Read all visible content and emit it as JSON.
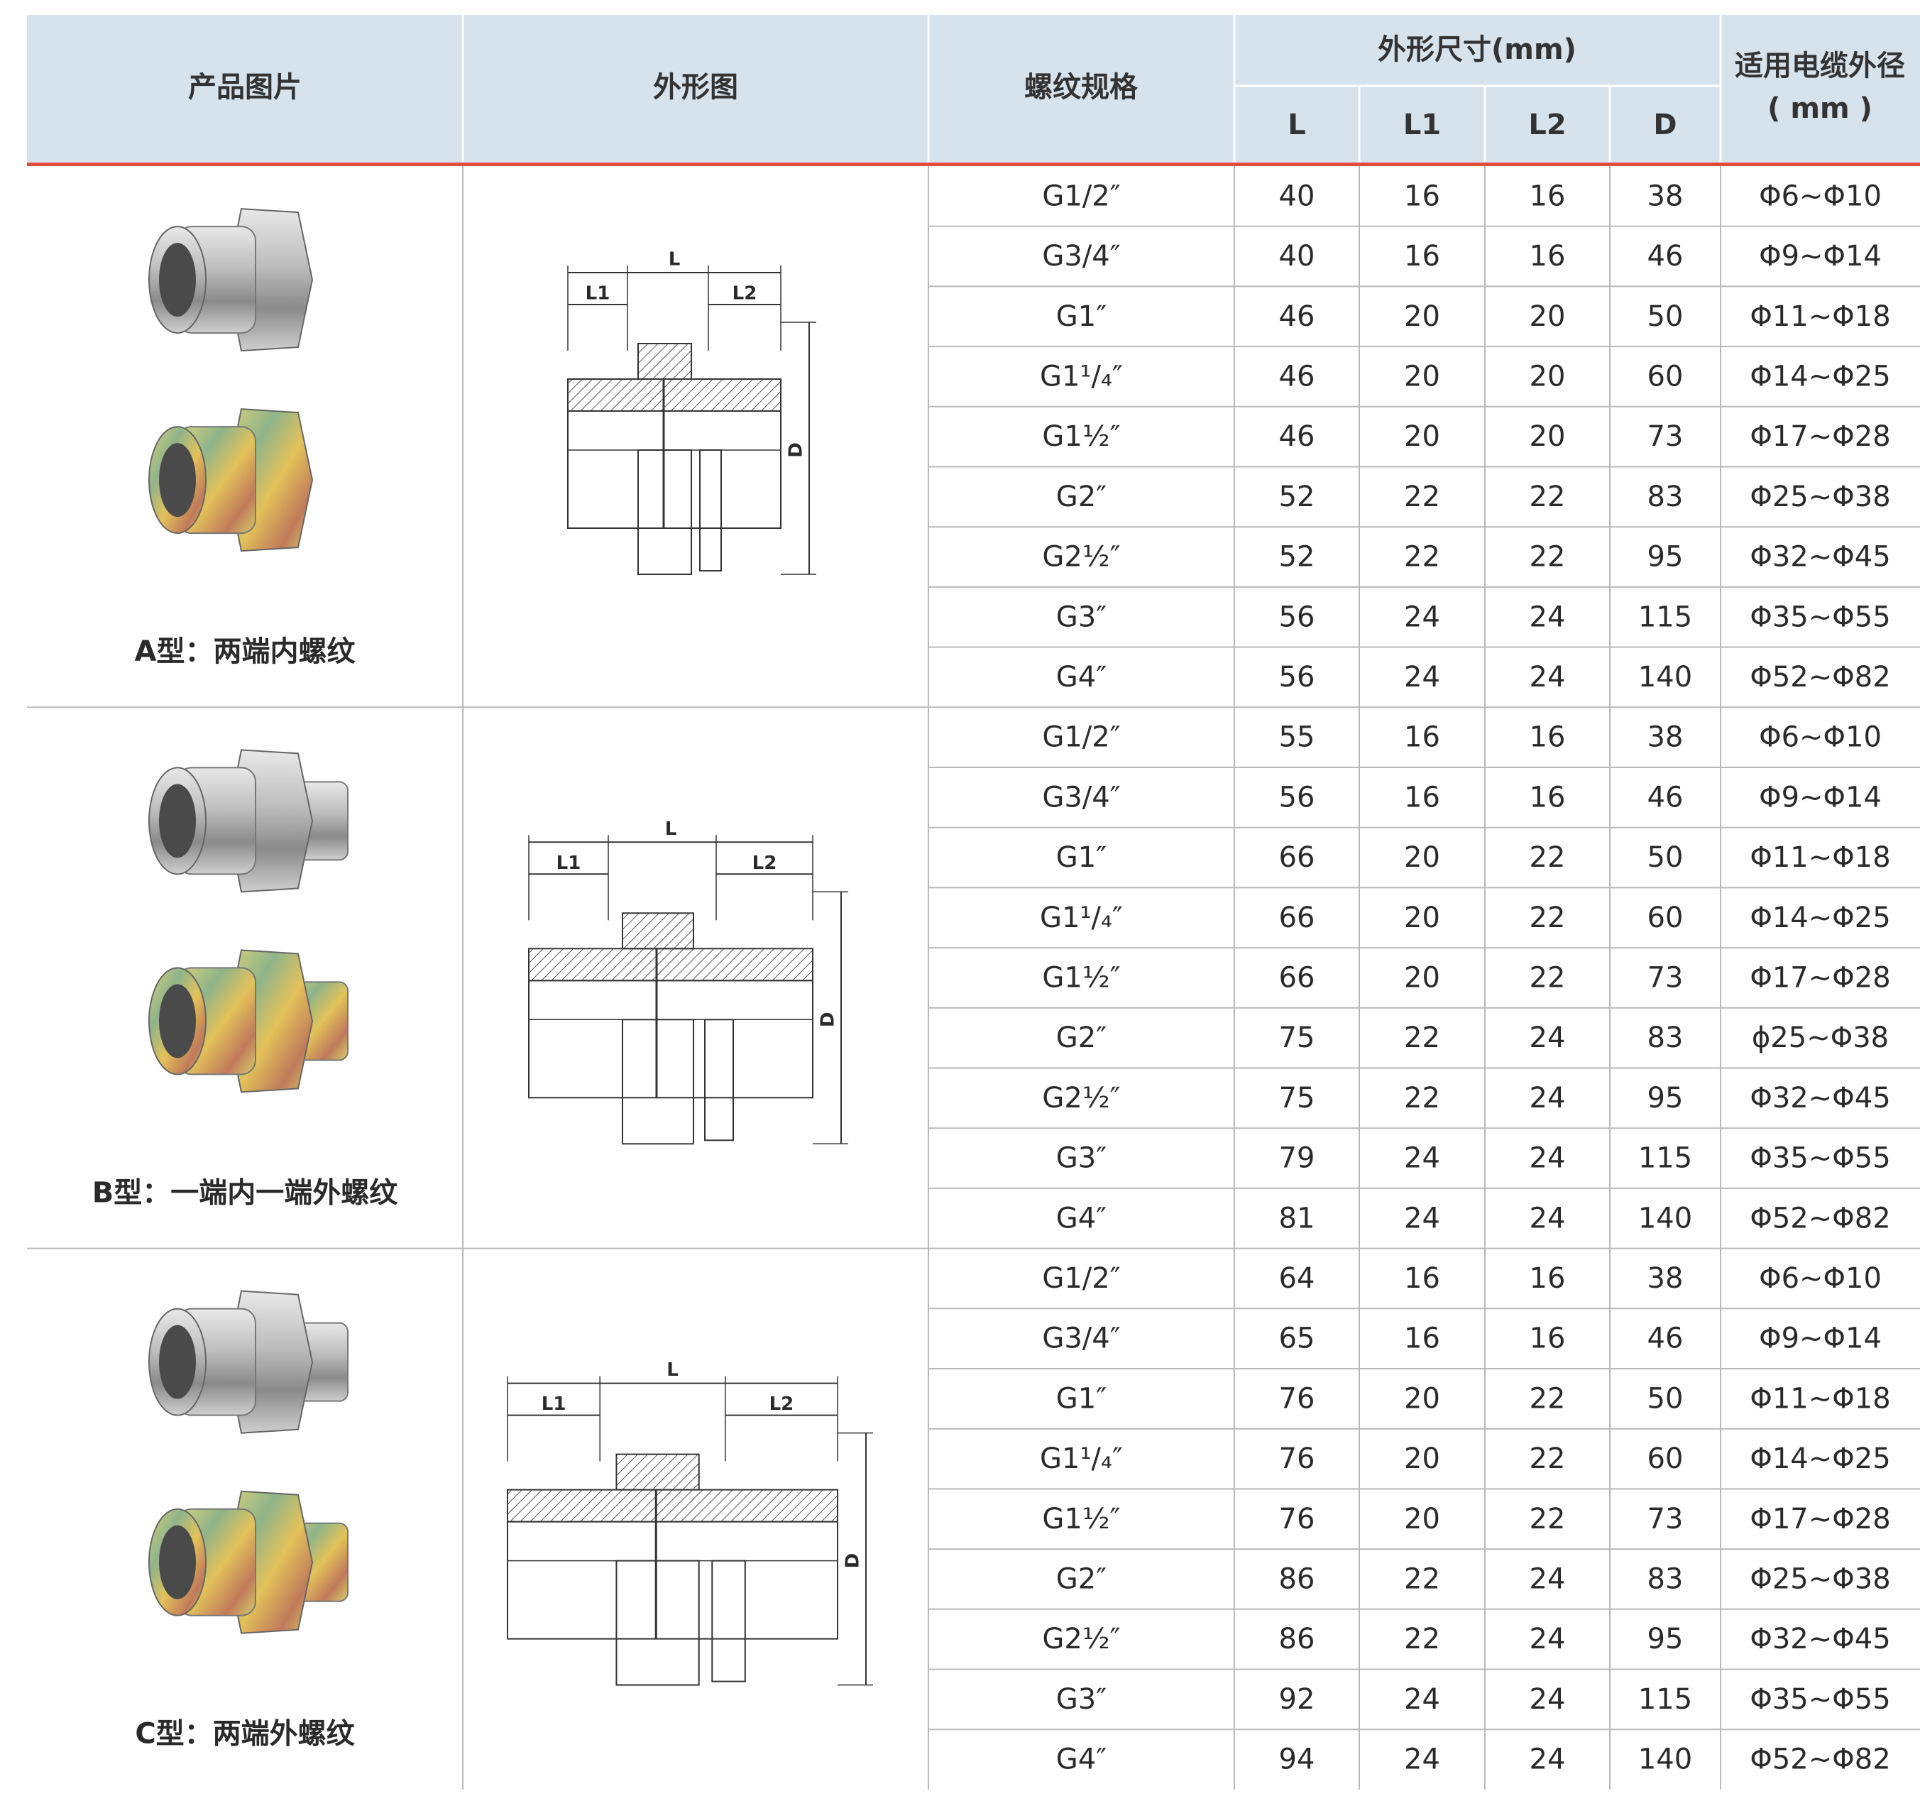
{
  "header": {
    "product": "产品图片",
    "drawing": "外形图",
    "thread": "螺纹规格",
    "dims": "外形尺寸(mm)",
    "dim_columns": [
      "L",
      "L1",
      "L2",
      "D"
    ],
    "cable": "适用电缆外径",
    "cable_unit": "( mm )"
  },
  "drawing_labels": {
    "L": "L",
    "L1": "L1",
    "L2": "L2",
    "D": "D"
  },
  "groups": [
    {
      "label": "A型：两端内螺纹",
      "rows": [
        [
          "G1/2″",
          40,
          16,
          16,
          38,
          "Φ6~Φ10"
        ],
        [
          "G3/4″",
          40,
          16,
          16,
          46,
          "Φ9~Φ14"
        ],
        [
          "G1″",
          46,
          20,
          20,
          50,
          "Φ11~Φ18"
        ],
        [
          "G1¹/₄″",
          46,
          20,
          20,
          60,
          "Φ14~Φ25"
        ],
        [
          "G1½″",
          46,
          20,
          20,
          73,
          "Φ17~Φ28"
        ],
        [
          "G2″",
          52,
          22,
          22,
          83,
          "Φ25~Φ38"
        ],
        [
          "G2½″",
          52,
          22,
          22,
          95,
          "Φ32~Φ45"
        ],
        [
          "G3″",
          56,
          24,
          24,
          115,
          "Φ35~Φ55"
        ],
        [
          "G4″",
          56,
          24,
          24,
          140,
          "Φ52~Φ82"
        ]
      ]
    },
    {
      "label": "B型：一端内一端外螺纹",
      "rows": [
        [
          "G1/2″",
          55,
          16,
          16,
          38,
          "Φ6~Φ10"
        ],
        [
          "G3/4″",
          56,
          16,
          16,
          46,
          "Φ9~Φ14"
        ],
        [
          "G1″",
          66,
          20,
          22,
          50,
          "Φ11~Φ18"
        ],
        [
          "G1¹/₄″",
          66,
          20,
          22,
          60,
          "Φ14~Φ25"
        ],
        [
          "G1½″",
          66,
          20,
          22,
          73,
          "Φ17~Φ28"
        ],
        [
          "G2″",
          75,
          22,
          24,
          83,
          "ϕ25~Φ38"
        ],
        [
          "G2½″",
          75,
          22,
          24,
          95,
          "Φ32~Φ45"
        ],
        [
          "G3″",
          79,
          24,
          24,
          115,
          "Φ35~Φ55"
        ],
        [
          "G4″",
          81,
          24,
          24,
          140,
          "Φ52~Φ82"
        ]
      ]
    },
    {
      "label": "C型：两端外螺纹",
      "rows": [
        [
          "G1/2″",
          64,
          16,
          16,
          38,
          "Φ6~Φ10"
        ],
        [
          "G3/4″",
          65,
          16,
          16,
          46,
          "Φ9~Φ14"
        ],
        [
          "G1″",
          76,
          20,
          22,
          50,
          "Φ11~Φ18"
        ],
        [
          "G1¹/₄″",
          76,
          20,
          22,
          60,
          "Φ14~Φ25"
        ],
        [
          "G1½″",
          76,
          20,
          22,
          73,
          "Φ17~Φ28"
        ],
        [
          "G2″",
          86,
          22,
          24,
          83,
          "Φ25~Φ38"
        ],
        [
          "G2½″",
          86,
          22,
          24,
          95,
          "Φ32~Φ45"
        ],
        [
          "G3″",
          92,
          24,
          24,
          115,
          "Φ35~Φ55"
        ],
        [
          "G4″",
          94,
          24,
          24,
          140,
          "Φ52~Φ82"
        ]
      ]
    }
  ]
}
